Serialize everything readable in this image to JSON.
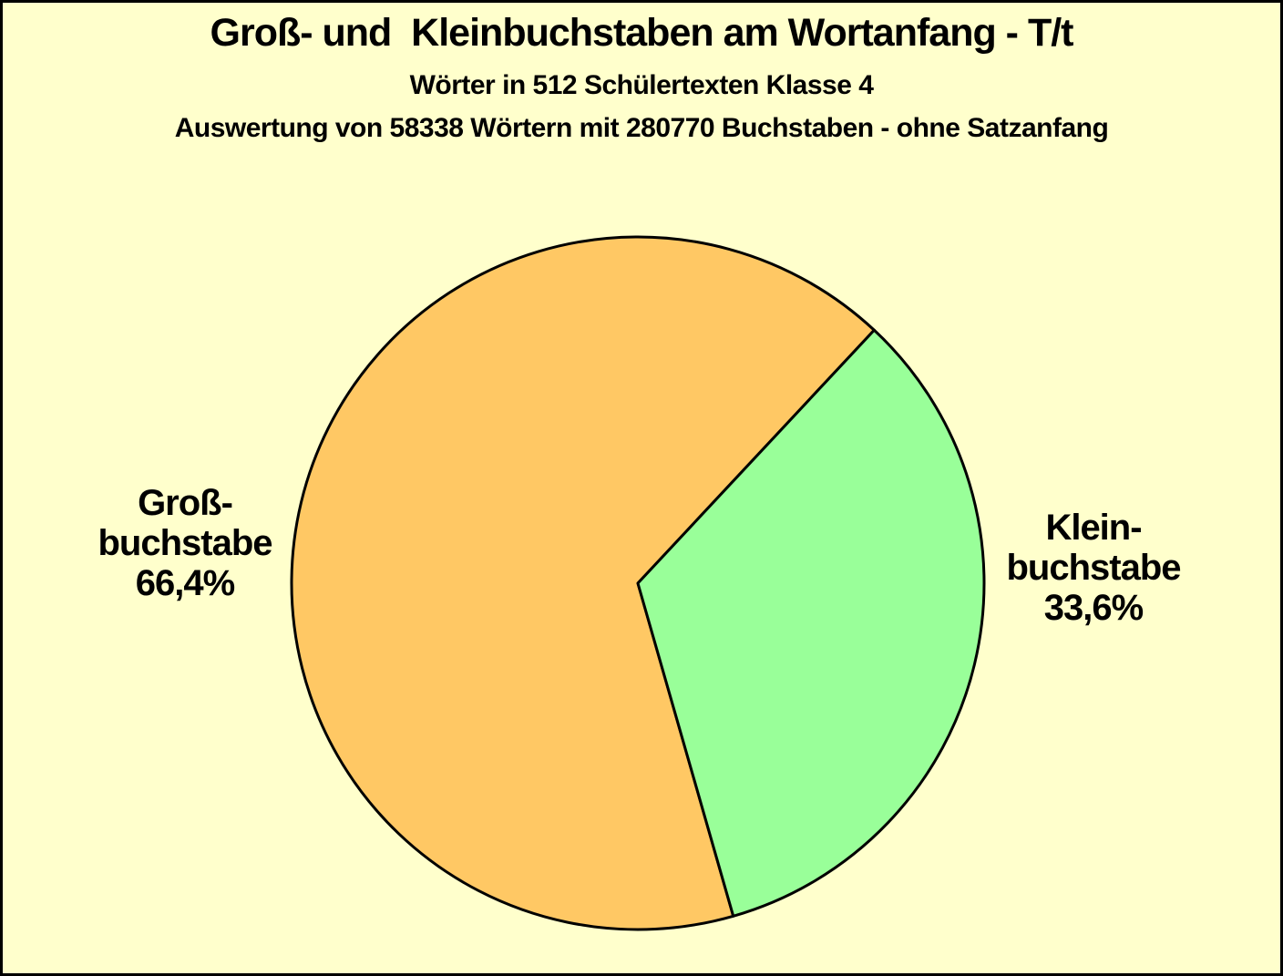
{
  "chart_data": {
    "type": "pie",
    "title": "Groß- und  Kleinbuchstaben am Wortanfang - T/t",
    "subtitle1": "Wörter in 512 Schülertexten Klasse 4",
    "subtitle2": "Auswertung von 58338 Wörtern mit 280770 Buchstaben - ohne Satzanfang",
    "categories": [
      "Großbuchstabe",
      "Kleinbuchstabe"
    ],
    "values": [
      66.4,
      33.6
    ],
    "unit": "percent",
    "slice_colors": [
      "#FFC864",
      "#99FF99"
    ],
    "start_angle_deg": 74,
    "direction": "clockwise",
    "legend_position": "none",
    "background_color": "#FFFFCC",
    "outline_color": "#000000",
    "slice_labels": [
      {
        "line1": "Groß-",
        "line2": "buchstabe",
        "percent": "66,4%"
      },
      {
        "line1": "Klein-",
        "line2": "buchstabe",
        "percent": "33,6%"
      }
    ]
  }
}
